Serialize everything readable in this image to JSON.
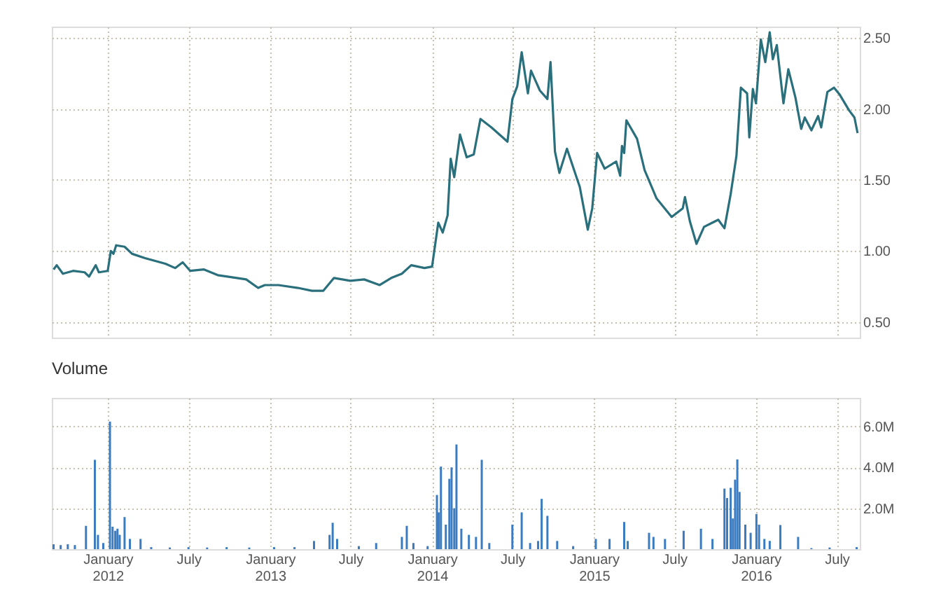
{
  "chart_data": [
    {
      "type": "line",
      "xlim": [
        "2011-08-28",
        "2016-08-22"
      ],
      "ylim": [
        0.39,
        2.58
      ],
      "tick_labels": "y",
      "grid": true,
      "line_style": "solid",
      "marker": "none",
      "xticks": [
        {
          "value": "2012-01-01",
          "label": null
        },
        {
          "value": "2012-07-01",
          "label": null
        },
        {
          "value": "2013-01-01",
          "label": null
        },
        {
          "value": "2013-07-01",
          "label": null
        },
        {
          "value": "2014-01-01",
          "label": null
        },
        {
          "value": "2014-07-01",
          "label": null
        },
        {
          "value": "2015-01-01",
          "label": null
        },
        {
          "value": "2015-07-01",
          "label": null
        },
        {
          "value": "2016-01-01",
          "label": null
        },
        {
          "value": "2016-07-01",
          "label": null
        }
      ],
      "yticks": [
        {
          "value": 0.5,
          "label": "0.50"
        },
        {
          "value": 1.0,
          "label": "1.00"
        },
        {
          "value": 1.5,
          "label": "1.50"
        },
        {
          "value": 2.0,
          "label": "2.00"
        },
        {
          "value": 2.5,
          "label": "2.50"
        }
      ],
      "series": [
        {
          "color": "#2a6f7c",
          "x": [
            "2011-09-01",
            "2011-09-08",
            "2011-09-22",
            "2011-10-15",
            "2011-11-10",
            "2011-11-20",
            "2011-12-05",
            "2011-12-12",
            "2012-01-01",
            "2012-01-08",
            "2012-01-14",
            "2012-01-20",
            "2012-02-08",
            "2012-02-25",
            "2012-03-25",
            "2012-05-10",
            "2012-06-01",
            "2012-06-18",
            "2012-07-05",
            "2012-08-05",
            "2012-09-05",
            "2012-09-27",
            "2012-11-08",
            "2012-12-05",
            "2012-12-20",
            "2013-01-20",
            "2013-03-05",
            "2013-04-05",
            "2013-05-01",
            "2013-05-25",
            "2013-07-01",
            "2013-08-01",
            "2013-09-05",
            "2013-10-01",
            "2013-10-25",
            "2013-11-15",
            "2013-12-15",
            "2014-01-01",
            "2014-01-15",
            "2014-01-25",
            "2014-02-05",
            "2014-02-12",
            "2014-02-20",
            "2014-03-05",
            "2014-03-20",
            "2014-04-05",
            "2014-04-20",
            "2014-05-15",
            "2014-06-20",
            "2014-07-01",
            "2014-07-12",
            "2014-07-22",
            "2014-08-05",
            "2014-08-12",
            "2014-09-01",
            "2014-09-18",
            "2014-09-25",
            "2014-10-05",
            "2014-10-15",
            "2014-11-01",
            "2014-11-30",
            "2014-12-18",
            "2014-12-28",
            "2015-01-08",
            "2015-01-25",
            "2015-02-20",
            "2015-03-01",
            "2015-03-05",
            "2015-03-10",
            "2015-03-15",
            "2015-04-08",
            "2015-04-25",
            "2015-05-22",
            "2015-06-25",
            "2015-07-20",
            "2015-07-25",
            "2015-08-05",
            "2015-08-20",
            "2015-09-06",
            "2015-10-08",
            "2015-10-22",
            "2015-11-05",
            "2015-11-18",
            "2015-11-28",
            "2015-12-12",
            "2015-12-17",
            "2015-12-25",
            "2016-01-01",
            "2016-01-12",
            "2016-01-22",
            "2016-02-01",
            "2016-02-08",
            "2016-02-17",
            "2016-03-03",
            "2016-03-14",
            "2016-03-30",
            "2016-04-12",
            "2016-04-20",
            "2016-05-05",
            "2016-05-20",
            "2016-05-27",
            "2016-06-10",
            "2016-06-25",
            "2016-07-08",
            "2016-07-29",
            "2016-08-10",
            "2016-08-17"
          ],
          "values": [
            0.87,
            0.9,
            0.84,
            0.86,
            0.85,
            0.82,
            0.9,
            0.85,
            0.86,
            1.0,
            0.98,
            1.04,
            1.03,
            0.98,
            0.95,
            0.91,
            0.88,
            0.92,
            0.86,
            0.87,
            0.83,
            0.82,
            0.8,
            0.74,
            0.76,
            0.76,
            0.74,
            0.72,
            0.72,
            0.81,
            0.79,
            0.8,
            0.76,
            0.81,
            0.84,
            0.9,
            0.88,
            0.89,
            1.2,
            1.13,
            1.25,
            1.65,
            1.52,
            1.82,
            1.66,
            1.68,
            1.93,
            1.87,
            1.77,
            2.07,
            2.16,
            2.4,
            2.11,
            2.27,
            2.13,
            2.07,
            2.33,
            1.7,
            1.55,
            1.72,
            1.45,
            1.15,
            1.3,
            1.69,
            1.58,
            1.63,
            1.53,
            1.74,
            1.69,
            1.92,
            1.79,
            1.57,
            1.37,
            1.24,
            1.3,
            1.38,
            1.21,
            1.05,
            1.17,
            1.22,
            1.16,
            1.4,
            1.67,
            2.15,
            2.11,
            1.8,
            2.14,
            2.04,
            2.49,
            2.33,
            2.54,
            2.35,
            2.45,
            2.04,
            2.28,
            2.08,
            1.86,
            1.94,
            1.85,
            1.95,
            1.87,
            2.12,
            2.15,
            2.1,
            1.99,
            1.94,
            1.83
          ]
        }
      ]
    },
    {
      "type": "bar",
      "title": "Volume",
      "xlim": [
        "2011-08-28",
        "2016-08-22"
      ],
      "ylim": [
        0,
        7400000
      ],
      "grid": true,
      "xticks": [
        {
          "value": "2012-01-01",
          "label": "January 2012"
        },
        {
          "value": "2012-07-01",
          "label": "July"
        },
        {
          "value": "2013-01-01",
          "label": "January 2013"
        },
        {
          "value": "2013-07-01",
          "label": "July"
        },
        {
          "value": "2014-01-01",
          "label": "January 2014"
        },
        {
          "value": "2014-07-01",
          "label": "July"
        },
        {
          "value": "2015-01-01",
          "label": "January 2015"
        },
        {
          "value": "2015-07-01",
          "label": "July"
        },
        {
          "value": "2016-01-01",
          "label": "January 2016"
        },
        {
          "value": "2016-07-01",
          "label": "July"
        }
      ],
      "yticks": [
        {
          "value": 2000000,
          "label": "2.0M"
        },
        {
          "value": 4000000,
          "label": "4.0M"
        },
        {
          "value": 6000000,
          "label": "6.0M"
        }
      ],
      "series": [
        {
          "color": "#3b7bbf",
          "x": [
            "2011-09-01",
            "2011-09-17",
            "2011-10-03",
            "2011-10-19",
            "2011-11-13",
            "2011-12-03",
            "2011-12-10",
            "2011-12-22",
            "2012-01-06",
            "2012-01-12",
            "2012-01-18",
            "2012-01-23",
            "2012-01-28",
            "2012-02-08",
            "2012-02-20",
            "2012-03-15",
            "2012-04-08",
            "2012-05-20",
            "2012-07-01",
            "2012-08-12",
            "2012-09-25",
            "2012-11-15",
            "2013-01-10",
            "2013-02-25",
            "2013-04-10",
            "2013-05-15",
            "2013-05-22",
            "2013-06-01",
            "2013-07-20",
            "2013-08-28",
            "2013-10-25",
            "2013-11-05",
            "2013-11-20",
            "2013-12-22",
            "2014-01-12",
            "2014-01-16",
            "2014-01-21",
            "2014-02-01",
            "2014-02-09",
            "2014-02-14",
            "2014-02-20",
            "2014-02-25",
            "2014-03-08",
            "2014-03-25",
            "2014-04-10",
            "2014-04-23",
            "2014-05-10",
            "2014-07-01",
            "2014-07-22",
            "2014-08-10",
            "2014-08-28",
            "2014-09-05",
            "2014-09-18",
            "2014-10-10",
            "2014-11-15",
            "2015-01-05",
            "2015-02-05",
            "2015-03-10",
            "2015-03-18",
            "2015-05-05",
            "2015-05-15",
            "2015-06-10",
            "2015-07-22",
            "2015-08-30",
            "2015-09-25",
            "2015-10-22",
            "2015-10-28",
            "2015-11-05",
            "2015-11-10",
            "2015-11-15",
            "2015-11-20",
            "2015-11-25",
            "2015-12-08",
            "2015-12-20",
            "2016-01-02",
            "2016-01-08",
            "2016-01-20",
            "2016-02-01",
            "2016-02-25",
            "2016-04-05",
            "2016-05-05",
            "2016-06-15",
            "2016-08-15"
          ],
          "values": [
            240000,
            200000,
            240000,
            200000,
            1140000,
            4370000,
            700000,
            300000,
            6240000,
            1100000,
            900000,
            1000000,
            700000,
            1570000,
            500000,
            500000,
            100000,
            80000,
            100000,
            80000,
            100000,
            80000,
            100000,
            100000,
            400000,
            700000,
            1290000,
            500000,
            150000,
            300000,
            600000,
            1140000,
            300000,
            150000,
            2650000,
            1800000,
            4040000,
            1200000,
            3440000,
            4000000,
            2000000,
            5120000,
            1000000,
            700000,
            600000,
            4370000,
            300000,
            1200000,
            1800000,
            300000,
            400000,
            2460000,
            1630000,
            400000,
            150000,
            500000,
            500000,
            1330000,
            400000,
            800000,
            600000,
            500000,
            900000,
            1000000,
            500000,
            2960000,
            2500000,
            3000000,
            1500000,
            3400000,
            4390000,
            2800000,
            1200000,
            800000,
            1720000,
            1200000,
            500000,
            400000,
            1180000,
            600000,
            50000,
            80000,
            100000
          ]
        }
      ]
    }
  ]
}
